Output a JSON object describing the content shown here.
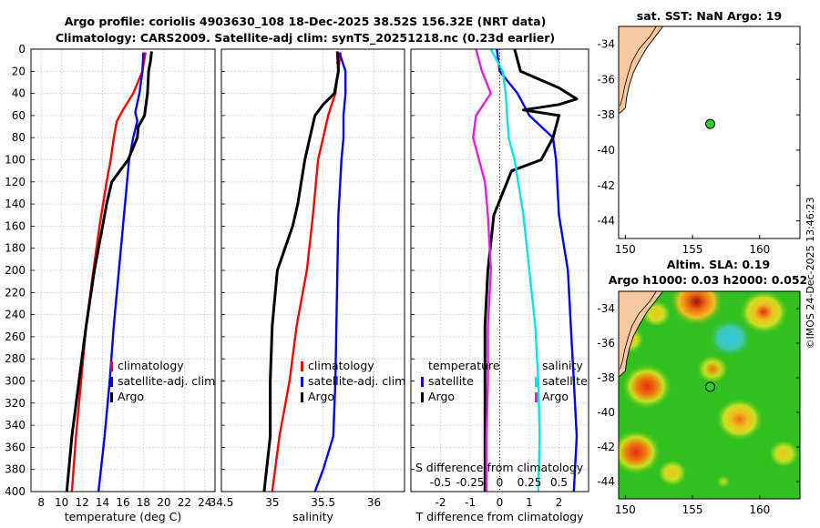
{
  "title_line1": "Argo profile: coriolis 4903630_108 18-Dec-2025 38.52S 156.32E (NRT data)",
  "title_line2": "Climatology: CARS2009. Satellite-adj clim: synTS_20251218.nc (0.23d earlier)",
  "watermark": "©IMOS 24-Dec-2025 13:46:23",
  "colors": {
    "climatology": "#ff0000",
    "satellite": "#0000ee",
    "argo": "#000000",
    "salinity_diff": "#00e5e5",
    "temperature_diff": "#e020e0",
    "land": "#f8c8a0",
    "marker": "#33cc33"
  },
  "chart_data": [
    {
      "id": "temperature",
      "type": "line",
      "xlabel": "temperature (deg C)",
      "ylabel": "",
      "xlim": [
        7,
        25
      ],
      "ylim": [
        400,
        0
      ],
      "xticks": [
        8,
        10,
        12,
        14,
        16,
        18,
        20,
        22,
        24
      ],
      "yticks": [
        0,
        20,
        40,
        60,
        80,
        100,
        120,
        140,
        160,
        180,
        200,
        220,
        240,
        260,
        280,
        300,
        320,
        340,
        360,
        380,
        400
      ],
      "legend": [
        "climatology",
        "satellite-adj. clim",
        "Argo"
      ],
      "series": [
        {
          "name": "climatology",
          "color": "#ff0000",
          "depth": [
            3,
            20,
            40,
            55,
            65,
            80,
            100,
            120,
            160,
            200,
            250,
            300,
            350,
            400
          ],
          "values": [
            18.2,
            17.9,
            17.0,
            16.0,
            15.4,
            15.1,
            14.8,
            14.4,
            13.7,
            13.1,
            12.4,
            11.9,
            11.4,
            11.0
          ]
        },
        {
          "name": "satellite-adj. clim",
          "color": "#0000ee",
          "depth": [
            3,
            20,
            40,
            57,
            65,
            80,
            100,
            150,
            200,
            250,
            300,
            350,
            400
          ],
          "values": [
            18.0,
            17.9,
            17.6,
            17.2,
            17.4,
            17.0,
            16.6,
            16.1,
            15.6,
            15.1,
            14.7,
            14.2,
            13.6
          ]
        },
        {
          "name": "Argo",
          "color": "#000000",
          "depth": [
            2,
            10,
            20,
            40,
            60,
            70,
            80,
            100,
            120,
            140,
            160,
            200,
            250,
            300,
            350,
            400
          ],
          "values": [
            18.8,
            18.7,
            18.5,
            18.4,
            18.1,
            17.5,
            17.4,
            16.5,
            14.9,
            14.4,
            14.0,
            13.2,
            12.4,
            11.7,
            11.0,
            10.5
          ]
        }
      ]
    },
    {
      "id": "salinity",
      "type": "line",
      "xlabel": "salinity",
      "ylabel": "",
      "xlim": [
        34.5,
        36.3
      ],
      "ylim": [
        400,
        0
      ],
      "xticks": [
        34.5,
        35,
        35.5,
        36
      ],
      "legend": [
        "climatology",
        "satellite-adj. clim",
        "Argo"
      ],
      "series": [
        {
          "name": "climatology",
          "color": "#ff0000",
          "depth": [
            3,
            40,
            60,
            80,
            100,
            150,
            200,
            250,
            300,
            350,
            400
          ],
          "values": [
            35.67,
            35.62,
            35.55,
            35.5,
            35.45,
            35.4,
            35.34,
            35.24,
            35.17,
            35.07,
            35.0
          ],
          "dash": true
        },
        {
          "name": "satellite-adj. clim",
          "color": "#0000ee",
          "depth": [
            3,
            20,
            40,
            60,
            80,
            100,
            150,
            200,
            250,
            300,
            350,
            380,
            400
          ],
          "values": [
            35.66,
            35.72,
            35.72,
            35.7,
            35.7,
            35.68,
            35.65,
            35.64,
            35.63,
            35.62,
            35.6,
            35.5,
            35.42
          ]
        },
        {
          "name": "Argo",
          "color": "#000000",
          "depth": [
            2,
            20,
            40,
            50,
            60,
            80,
            100,
            140,
            160,
            200,
            250,
            300,
            350,
            400
          ],
          "values": [
            35.64,
            35.65,
            35.61,
            35.5,
            35.42,
            35.37,
            35.32,
            35.25,
            35.2,
            35.05,
            35.0,
            34.98,
            34.98,
            34.92
          ]
        }
      ]
    },
    {
      "id": "differences",
      "type": "line",
      "xlabel": "T difference from climatology",
      "xlabel2": "S difference from climatology",
      "xlim": [
        -3,
        3
      ],
      "ylim": [
        400,
        0
      ],
      "xticks": [
        -2,
        -1,
        0,
        1,
        2
      ],
      "xticks2": [
        {
          "label": "-0.5",
          "value": -2
        },
        {
          "label": "-0.25",
          "value": -1
        },
        {
          "label": "0",
          "value": 0
        },
        {
          "label": "0.25",
          "value": 1
        },
        {
          "label": "0.5",
          "value": 2
        }
      ],
      "legend_t": [
        "temperature",
        "satellite",
        "Argo"
      ],
      "legend_s": [
        "salinity",
        "satellite",
        "Argo"
      ],
      "series": [
        {
          "name": "satellite T diff",
          "color": "#0000ee",
          "depth": [
            0,
            20,
            40,
            60,
            80,
            100,
            150,
            200,
            250,
            300,
            350,
            400
          ],
          "values": [
            -0.1,
            0.0,
            0.6,
            1.0,
            1.8,
            1.9,
            2.0,
            2.3,
            2.4,
            2.5,
            2.6,
            2.5
          ]
        },
        {
          "name": "Argo T diff",
          "color": "#000000",
          "depth": [
            0,
            20,
            35,
            45,
            50,
            55,
            60,
            80,
            100,
            110,
            150,
            200,
            250,
            300,
            350,
            400
          ],
          "values": [
            0.5,
            0.7,
            2.0,
            2.6,
            2.0,
            0.8,
            2.0,
            1.8,
            1.4,
            0.4,
            -0.2,
            -0.4,
            -0.5,
            -0.5,
            -0.5,
            -0.5
          ]
        },
        {
          "name": "salinity diff",
          "color": "#00e5e5",
          "depth": [
            0,
            20,
            40,
            60,
            80,
            100,
            150,
            200,
            250,
            300,
            350,
            400
          ],
          "values": [
            -0.3,
            0.1,
            0.2,
            0.25,
            0.3,
            0.5,
            0.8,
            1.0,
            1.2,
            1.3,
            1.35,
            1.3
          ]
        },
        {
          "name": "Argo S diff",
          "color": "#e020e0",
          "depth": [
            0,
            20,
            40,
            60,
            80,
            100,
            120,
            150,
            200,
            250,
            300,
            350,
            400
          ],
          "values": [
            -0.8,
            -0.6,
            -0.3,
            -0.8,
            -0.9,
            -0.7,
            -0.5,
            -0.4,
            -0.3,
            -0.4,
            -0.4,
            -0.45,
            -0.45
          ]
        }
      ]
    },
    {
      "id": "sst_map",
      "type": "map",
      "title": "sat. SST: NaN Argo: 19",
      "xlim": [
        149.5,
        163
      ],
      "ylim": [
        -45,
        -33
      ],
      "xticks": [
        150,
        155,
        160
      ],
      "yticks": [
        -34,
        -36,
        -38,
        -40,
        -42,
        -44
      ],
      "marker": {
        "lon": 156.32,
        "lat": -38.52
      }
    },
    {
      "id": "sla_map",
      "type": "heatmap",
      "title": "Altim. SLA: 0.19",
      "title2": "Argo h1000: 0.03 h2000: 0.052",
      "xlim": [
        149.5,
        163
      ],
      "ylim": [
        -45,
        -33
      ],
      "xticks": [
        150,
        155,
        160
      ],
      "yticks": [
        -34,
        -36,
        -38,
        -40,
        -42,
        -44
      ],
      "marker": {
        "lon": 156.32,
        "lat": -38.52
      },
      "blobs": [
        {
          "lon": 155.3,
          "lat": -33.6,
          "value": 1.0
        },
        {
          "lon": 160.3,
          "lat": -34.2,
          "value": 0.85
        },
        {
          "lon": 152.3,
          "lat": -34.3,
          "value": 0.6
        },
        {
          "lon": 150.3,
          "lat": -35.8,
          "value": 0.6
        },
        {
          "lon": 151.6,
          "lat": -38.5,
          "value": 0.9
        },
        {
          "lon": 156.5,
          "lat": -37.5,
          "value": 0.7
        },
        {
          "lon": 158.5,
          "lat": -40.4,
          "value": 0.8
        },
        {
          "lon": 150.8,
          "lat": -42.3,
          "value": 0.9
        },
        {
          "lon": 153.5,
          "lat": -43.5,
          "value": 0.6
        },
        {
          "lon": 161.8,
          "lat": -42.4,
          "value": 0.65
        },
        {
          "lon": 157.8,
          "lat": -35.7,
          "value": -0.6
        },
        {
          "lon": 154.0,
          "lat": -41.0,
          "value": 0.35
        },
        {
          "lon": 159.6,
          "lat": -44.2,
          "value": 0.35
        },
        {
          "lon": 162.5,
          "lat": -37.5,
          "value": 0.35
        },
        {
          "lon": 157.3,
          "lat": -44.0,
          "value": 0.45
        }
      ]
    }
  ]
}
